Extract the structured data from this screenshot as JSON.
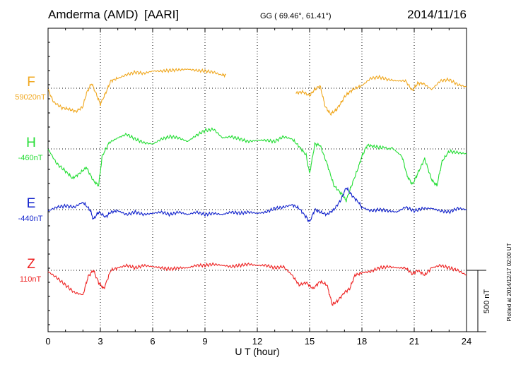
{
  "chart_data": {
    "type": "line",
    "station": "Amderma (AMD)",
    "network": "[AARI]",
    "coords": "GG ( 69.46°,  61.41°)",
    "date": "2014/11/16",
    "xlabel": "U T (hour)",
    "xlim": [
      0,
      24
    ],
    "xticks": [
      "0",
      "3",
      "6",
      "9",
      "12",
      "15",
      "18",
      "21",
      "24"
    ],
    "scale_label": "500 nT",
    "scale_nT": 500,
    "plotted_note": "Plotted at 2014/12/17 02:00 UT",
    "series": [
      {
        "name": "F",
        "baseline_label": "59020nT",
        "color": "#f0a820",
        "note": "values in nT relative to baseline",
        "segments": [
          [
            [
              0,
              -10
            ],
            [
              0.3,
              -110
            ],
            [
              0.8,
              -160
            ],
            [
              1.2,
              -170
            ],
            [
              1.6,
              -190
            ],
            [
              2.0,
              -150
            ],
            [
              2.2,
              -40
            ],
            [
              2.5,
              40
            ],
            [
              2.8,
              -60
            ],
            [
              3.0,
              -130
            ],
            [
              3.3,
              -40
            ],
            [
              3.6,
              60
            ],
            [
              4.0,
              80
            ],
            [
              4.5,
              110
            ],
            [
              5.0,
              130
            ],
            [
              5.5,
              120
            ],
            [
              6.0,
              140
            ],
            [
              6.5,
              140
            ],
            [
              7.0,
              145
            ],
            [
              7.5,
              150
            ],
            [
              8.0,
              155
            ],
            [
              8.5,
              145
            ],
            [
              9.0,
              140
            ],
            [
              9.5,
              130
            ],
            [
              10.0,
              105
            ],
            [
              10.2,
              110
            ]
          ],
          [
            [
              14.2,
              -40
            ],
            [
              14.6,
              -30
            ],
            [
              15.0,
              -60
            ],
            [
              15.3,
              -10
            ],
            [
              15.6,
              20
            ],
            [
              15.9,
              -150
            ],
            [
              16.2,
              -210
            ],
            [
              16.5,
              -180
            ],
            [
              16.8,
              -120
            ],
            [
              17.0,
              -70
            ],
            [
              17.3,
              -30
            ],
            [
              17.6,
              0
            ],
            [
              18.0,
              20
            ],
            [
              18.5,
              80
            ],
            [
              19.0,
              90
            ],
            [
              19.5,
              70
            ],
            [
              20.0,
              60
            ],
            [
              20.5,
              60
            ],
            [
              20.9,
              -20
            ],
            [
              21.2,
              40
            ],
            [
              21.5,
              40
            ],
            [
              22.0,
              -10
            ],
            [
              22.5,
              60
            ],
            [
              23.0,
              70
            ],
            [
              23.5,
              30
            ],
            [
              24.0,
              10
            ]
          ]
        ]
      },
      {
        "name": "H",
        "baseline_label": "-460nT",
        "color": "#22dd33",
        "note": "values in nT relative to baseline",
        "segments": [
          [
            [
              0,
              0
            ],
            [
              0.5,
              -120
            ],
            [
              1.0,
              -180
            ],
            [
              1.4,
              -240
            ],
            [
              1.8,
              -200
            ],
            [
              2.2,
              -150
            ],
            [
              2.6,
              -260
            ],
            [
              2.9,
              -300
            ],
            [
              3.1,
              -60
            ],
            [
              3.5,
              50
            ],
            [
              4.0,
              90
            ],
            [
              4.5,
              120
            ],
            [
              5.0,
              80
            ],
            [
              5.5,
              50
            ],
            [
              6.0,
              40
            ],
            [
              6.5,
              80
            ],
            [
              7.0,
              100
            ],
            [
              7.5,
              90
            ],
            [
              8.0,
              60
            ],
            [
              8.5,
              110
            ],
            [
              9.0,
              150
            ],
            [
              9.5,
              160
            ],
            [
              10.0,
              90
            ],
            [
              10.5,
              100
            ],
            [
              11.0,
              80
            ],
            [
              11.5,
              60
            ],
            [
              12.0,
              70
            ],
            [
              12.5,
              70
            ],
            [
              13.0,
              60
            ],
            [
              13.5,
              100
            ],
            [
              14.0,
              80
            ],
            [
              14.4,
              20
            ],
            [
              14.8,
              -50
            ],
            [
              15.0,
              -200
            ],
            [
              15.3,
              40
            ],
            [
              15.6,
              30
            ],
            [
              16.0,
              -120
            ],
            [
              16.4,
              -300
            ],
            [
              16.8,
              -360
            ],
            [
              17.1,
              -420
            ],
            [
              17.4,
              -300
            ],
            [
              17.8,
              -150
            ],
            [
              18.0,
              -60
            ],
            [
              18.3,
              30
            ],
            [
              18.7,
              20
            ],
            [
              19.2,
              10
            ],
            [
              19.8,
              0
            ],
            [
              20.3,
              -60
            ],
            [
              20.6,
              -220
            ],
            [
              20.9,
              -290
            ],
            [
              21.2,
              -200
            ],
            [
              21.6,
              -80
            ],
            [
              22.0,
              -250
            ],
            [
              22.3,
              -300
            ],
            [
              22.6,
              -100
            ],
            [
              23.0,
              -20
            ],
            [
              23.5,
              -30
            ],
            [
              24.0,
              -40
            ]
          ]
        ]
      },
      {
        "name": "E",
        "baseline_label": "-440nT",
        "color": "#1122cc",
        "note": "values in nT relative to baseline",
        "segments": [
          [
            [
              0,
              -10
            ],
            [
              0.5,
              20
            ],
            [
              1.0,
              30
            ],
            [
              1.5,
              20
            ],
            [
              2.0,
              60
            ],
            [
              2.4,
              0
            ],
            [
              2.6,
              -80
            ],
            [
              2.9,
              -20
            ],
            [
              3.3,
              -60
            ],
            [
              3.6,
              -20
            ],
            [
              4.0,
              -10
            ],
            [
              4.5,
              -40
            ],
            [
              5.0,
              -20
            ],
            [
              5.5,
              -40
            ],
            [
              6.0,
              -30
            ],
            [
              6.5,
              -20
            ],
            [
              7.0,
              -40
            ],
            [
              7.5,
              -20
            ],
            [
              8.0,
              -40
            ],
            [
              8.5,
              -20
            ],
            [
              9.0,
              -40
            ],
            [
              9.5,
              -30
            ],
            [
              10.0,
              -40
            ],
            [
              10.5,
              -20
            ],
            [
              11.0,
              -30
            ],
            [
              11.5,
              -20
            ],
            [
              12.0,
              -30
            ],
            [
              12.5,
              -20
            ],
            [
              13.0,
              10
            ],
            [
              13.5,
              20
            ],
            [
              14.0,
              40
            ],
            [
              14.4,
              10
            ],
            [
              14.8,
              -60
            ],
            [
              15.0,
              -100
            ],
            [
              15.3,
              0
            ],
            [
              15.6,
              -20
            ],
            [
              16.0,
              -40
            ],
            [
              16.4,
              0
            ],
            [
              16.8,
              80
            ],
            [
              17.1,
              180
            ],
            [
              17.4,
              120
            ],
            [
              17.8,
              60
            ],
            [
              18.0,
              20
            ],
            [
              18.5,
              -10
            ],
            [
              19.0,
              0
            ],
            [
              19.5,
              -10
            ],
            [
              20.0,
              -20
            ],
            [
              20.5,
              20
            ],
            [
              21.0,
              -10
            ],
            [
              21.5,
              10
            ],
            [
              22.0,
              10
            ],
            [
              22.5,
              -10
            ],
            [
              23.0,
              -20
            ],
            [
              23.5,
              10
            ],
            [
              24.0,
              0
            ]
          ]
        ]
      },
      {
        "name": "Z",
        "baseline_label": "110nT",
        "color": "#ee2222",
        "note": "values in nT relative to baseline",
        "segments": [
          [
            [
              0,
              -10
            ],
            [
              0.5,
              -60
            ],
            [
              1.0,
              -120
            ],
            [
              1.5,
              -180
            ],
            [
              2.0,
              -200
            ],
            [
              2.3,
              -50
            ],
            [
              2.6,
              0
            ],
            [
              2.9,
              -100
            ],
            [
              3.2,
              -150
            ],
            [
              3.6,
              0
            ],
            [
              4.0,
              20
            ],
            [
              4.5,
              40
            ],
            [
              5.0,
              20
            ],
            [
              5.5,
              40
            ],
            [
              6.0,
              30
            ],
            [
              6.5,
              20
            ],
            [
              7.0,
              10
            ],
            [
              7.5,
              20
            ],
            [
              8.0,
              20
            ],
            [
              8.5,
              40
            ],
            [
              9.0,
              40
            ],
            [
              9.5,
              50
            ],
            [
              10.0,
              40
            ],
            [
              10.5,
              30
            ],
            [
              11.0,
              40
            ],
            [
              11.5,
              50
            ],
            [
              12.0,
              40
            ],
            [
              12.5,
              40
            ],
            [
              13.0,
              20
            ],
            [
              13.5,
              30
            ],
            [
              14.0,
              -40
            ],
            [
              14.4,
              -120
            ],
            [
              14.8,
              -100
            ],
            [
              15.2,
              -150
            ],
            [
              15.6,
              -90
            ],
            [
              16.0,
              -120
            ],
            [
              16.3,
              -280
            ],
            [
              16.6,
              -250
            ],
            [
              17.0,
              -180
            ],
            [
              17.3,
              -150
            ],
            [
              17.6,
              -40
            ],
            [
              18.0,
              -20
            ],
            [
              18.5,
              -10
            ],
            [
              19.0,
              20
            ],
            [
              19.5,
              30
            ],
            [
              20.0,
              20
            ],
            [
              20.5,
              20
            ],
            [
              20.9,
              -30
            ],
            [
              21.2,
              0
            ],
            [
              21.6,
              -40
            ],
            [
              22.0,
              20
            ],
            [
              22.5,
              40
            ],
            [
              23.0,
              20
            ],
            [
              23.5,
              0
            ],
            [
              24.0,
              -40
            ]
          ]
        ]
      }
    ]
  }
}
